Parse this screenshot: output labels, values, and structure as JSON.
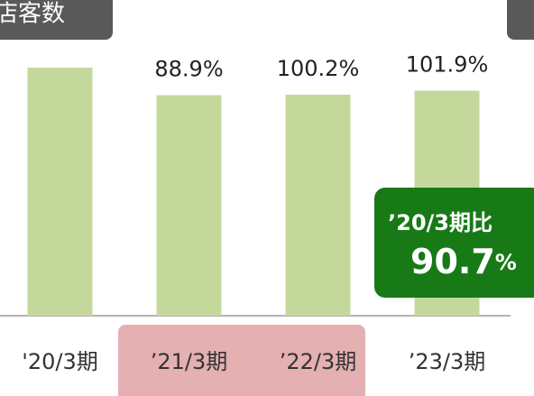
{
  "chart_data": {
    "type": "bar",
    "title": "店客数",
    "categories": [
      "'20/3期",
      "’21/3期",
      "’22/3期",
      "’23/3期"
    ],
    "values": [
      100,
      88.9,
      89.1,
      90.7
    ],
    "growth_labels": [
      null,
      "88.9%",
      "100.2%",
      "101.9%"
    ],
    "color": "#c5d89c",
    "ylim": [
      0,
      100
    ],
    "callout": {
      "label": "’20/3期比",
      "value": "90.7",
      "unit": "%"
    }
  }
}
